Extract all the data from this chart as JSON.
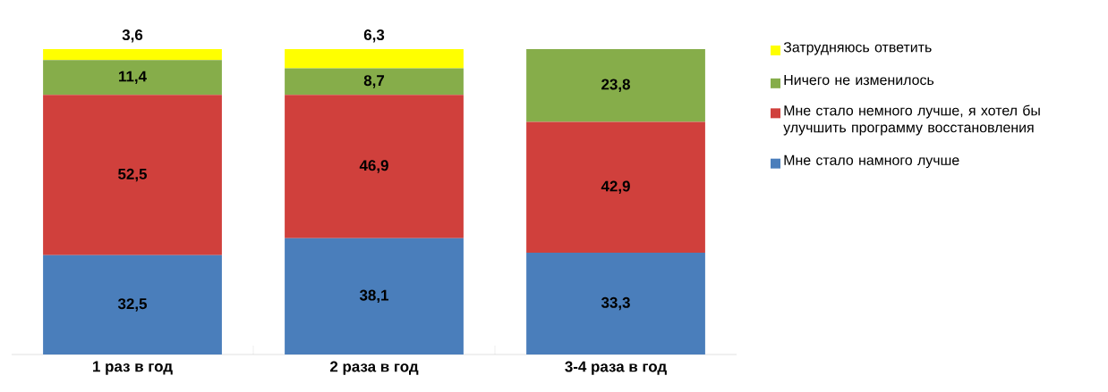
{
  "chart_data": {
    "type": "bar",
    "stacked": true,
    "categories": [
      "1 раз в год",
      "2 раза в год",
      "3-4 раза в год"
    ],
    "series": [
      {
        "name": "Мне стало намного лучше",
        "color": "#4a7ebb",
        "values": [
          32.5,
          38.1,
          33.3
        ],
        "value_labels": [
          "32,5",
          "38,1",
          "33,3"
        ]
      },
      {
        "name": "Мне стало немного лучше, я хотел бы улучшить программу восстановления",
        "color": "#d0403c",
        "values": [
          52.5,
          46.9,
          42.9
        ],
        "value_labels": [
          "52,5",
          "46,9",
          "42,9"
        ]
      },
      {
        "name": "Ничего не изменилось",
        "color": "#86ad4a",
        "values": [
          11.4,
          8.7,
          23.8
        ],
        "value_labels": [
          "11,4",
          "8,7",
          "23,8"
        ]
      },
      {
        "name": "Затрудняюсь ответить",
        "color": "#ffff00",
        "values": [
          3.6,
          6.3,
          null
        ],
        "value_labels": [
          "3,6",
          "6,3",
          null
        ]
      }
    ],
    "ylim": [
      0,
      100
    ],
    "tick_labels": "x",
    "legend": "right"
  }
}
